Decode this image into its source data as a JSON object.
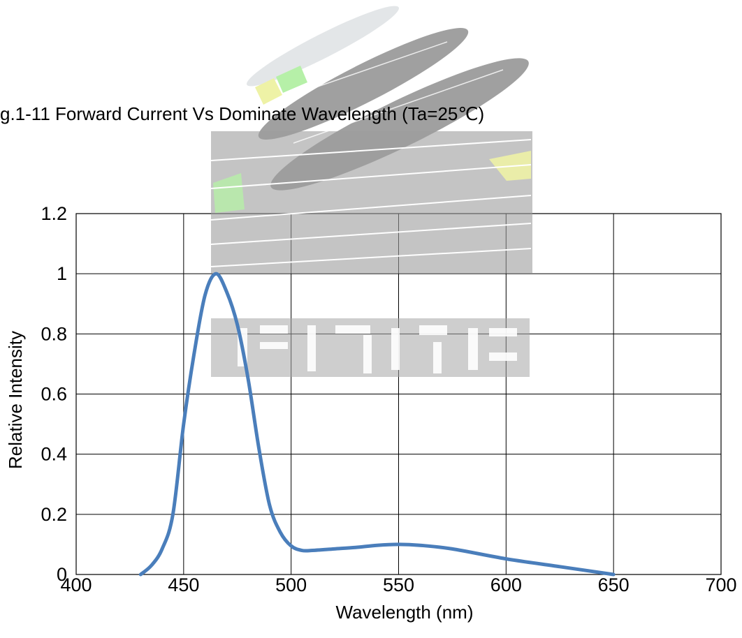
{
  "chart_data": {
    "type": "line",
    "title": "g.1-11 Forward Current Vs Dominate Wavelength (Ta=25℃)",
    "xlabel": "Wavelength (nm)",
    "ylabel": "Relative Intensity",
    "xlim": [
      400,
      700
    ],
    "ylim": [
      0,
      1.2
    ],
    "xticks": [
      400,
      450,
      500,
      550,
      600,
      650,
      700
    ],
    "yticks": [
      0,
      0.2,
      0.4,
      0.6,
      0.8,
      1,
      1.2
    ],
    "grid": true,
    "legend": "none",
    "series": [
      {
        "color": "#4a7ebb",
        "x": [
          430,
          435,
          440,
          445,
          450,
          455,
          460,
          465,
          470,
          475,
          480,
          485,
          490,
          495,
          500,
          505,
          510,
          520,
          530,
          540,
          550,
          560,
          575,
          600,
          625,
          650
        ],
        "y": [
          0,
          0.03,
          0.085,
          0.2,
          0.5,
          0.74,
          0.93,
          1.0,
          0.94,
          0.83,
          0.65,
          0.42,
          0.23,
          0.14,
          0.095,
          0.08,
          0.08,
          0.085,
          0.09,
          0.097,
          0.1,
          0.097,
          0.085,
          0.052,
          0.026,
          0
        ]
      }
    ]
  }
}
